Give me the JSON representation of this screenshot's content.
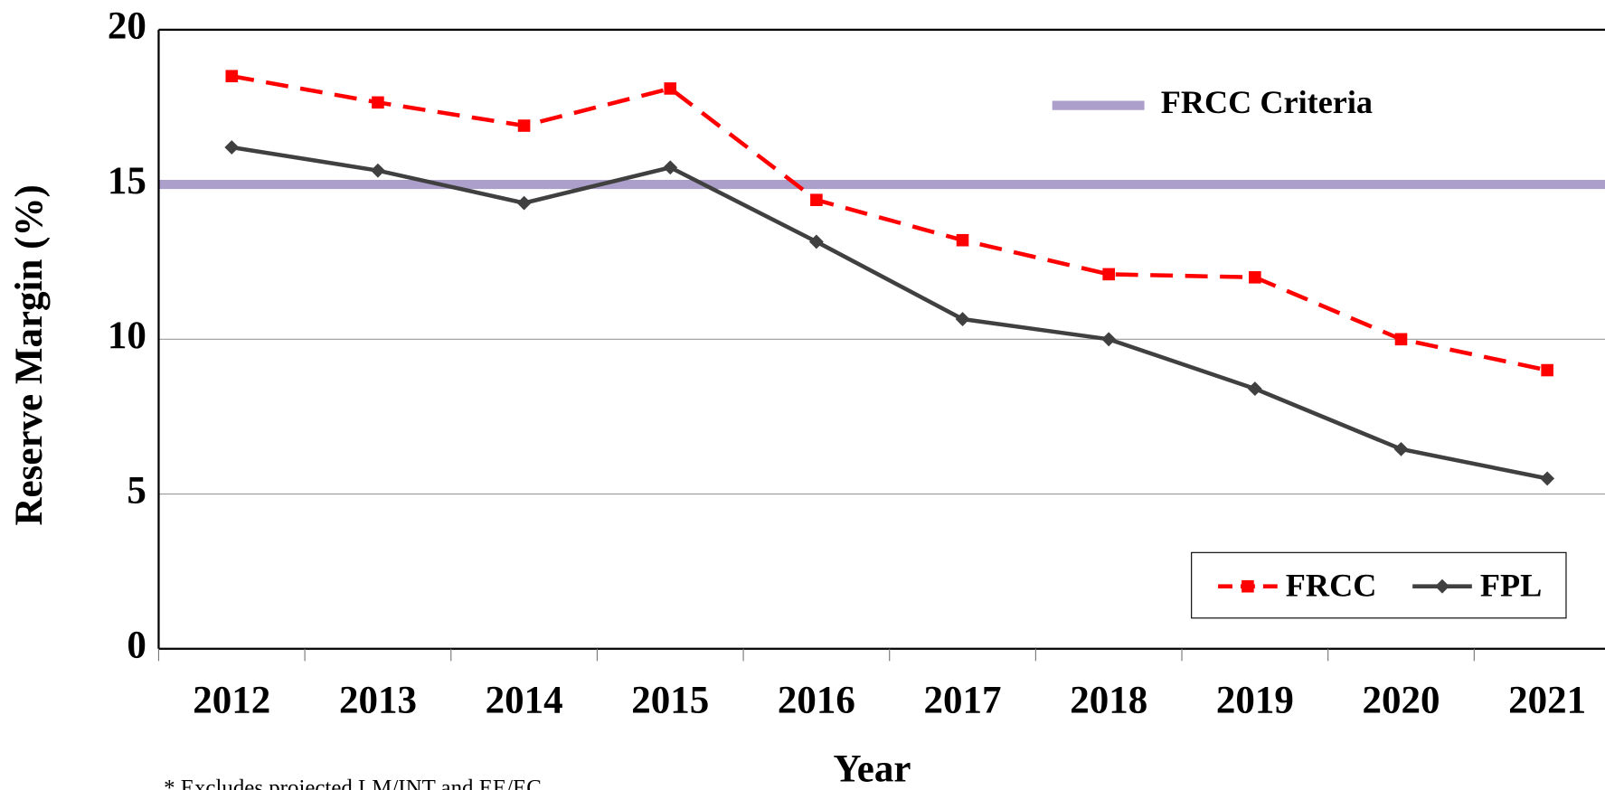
{
  "chart_data": {
    "type": "line",
    "y_label": "Reserve Margin (%)",
    "x_label": "Year",
    "note": "* Excludes projected LM/INT and EE/EC",
    "categories": [
      "2012",
      "2013",
      "2014",
      "2015",
      "2016",
      "2017",
      "2018",
      "2019",
      "2020",
      "2021"
    ],
    "series": [
      {
        "name": "FRCC",
        "color": "#ff0000",
        "dashed": true,
        "marker": "square",
        "values": [
          18.5,
          17.65,
          16.9,
          18.1,
          14.5,
          13.2,
          12.1,
          12.0,
          10.0,
          9.0
        ]
      },
      {
        "name": "FPL",
        "color": "#404040",
        "dashed": false,
        "marker": "diamond",
        "values": [
          16.2,
          15.45,
          14.4,
          15.55,
          13.15,
          10.65,
          10.0,
          8.4,
          6.45,
          5.5
        ]
      }
    ],
    "reference_line": {
      "name": "FRCC Criteria",
      "value": 15,
      "color": "#ad9fcb"
    },
    "ylim": [
      0,
      20
    ],
    "yticks": [
      0,
      5,
      10,
      15,
      20
    ],
    "grid": true,
    "legend": "lower right"
  }
}
